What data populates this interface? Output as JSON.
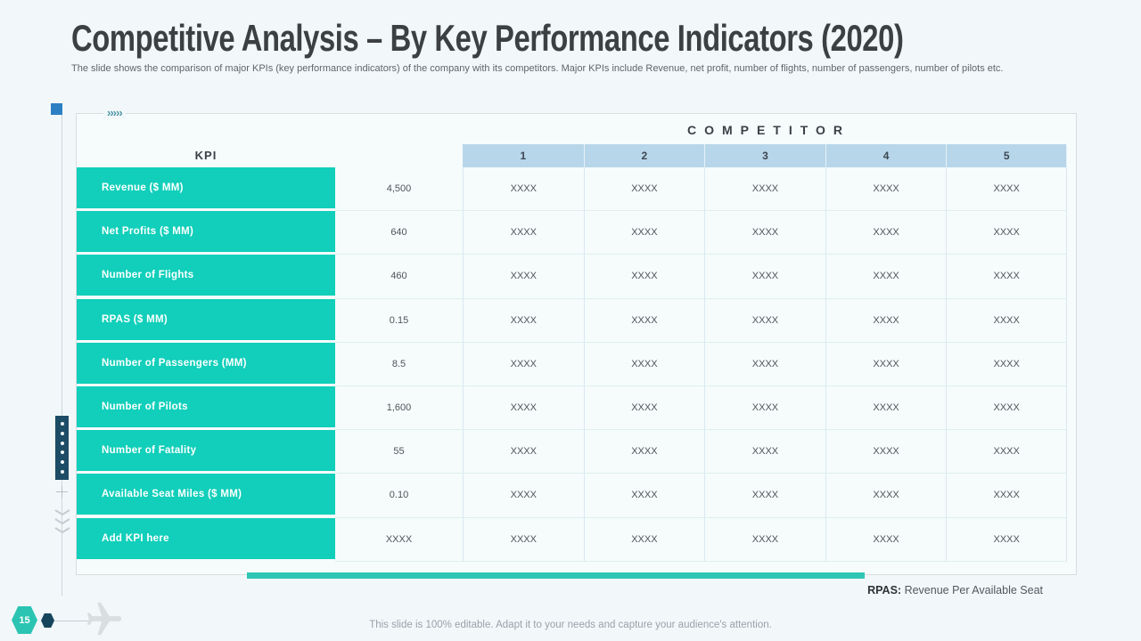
{
  "slide": {
    "title": "Competitive Analysis – By Key Performance Indicators (2020)",
    "subtitle": "The slide shows the comparison of major KPIs (key performance indicators) of the company with its competitors. Major KPIs include Revenue, net profit, number of flights, number of passengers, number of pilots etc.",
    "footer": "This slide is 100% editable. Adapt it to your needs and capture your audience's attention.",
    "page_number": "15"
  },
  "table": {
    "kpi_header": "KPI",
    "competitor_header": "COMPETITOR",
    "competitor_columns": [
      "1",
      "2",
      "3",
      "4",
      "5"
    ],
    "rows": [
      {
        "kpi": "Revenue ($ MM)",
        "company_value": "4,500",
        "competitor_values": [
          "XXXX",
          "XXXX",
          "XXXX",
          "XXXX",
          "XXXX"
        ]
      },
      {
        "kpi": "Net Profits ($ MM)",
        "company_value": "640",
        "competitor_values": [
          "XXXX",
          "XXXX",
          "XXXX",
          "XXXX",
          "XXXX"
        ]
      },
      {
        "kpi": "Number of Flights",
        "company_value": "460",
        "competitor_values": [
          "XXXX",
          "XXXX",
          "XXXX",
          "XXXX",
          "XXXX"
        ]
      },
      {
        "kpi": "RPAS ($ MM)",
        "company_value": "0.15",
        "competitor_values": [
          "XXXX",
          "XXXX",
          "XXXX",
          "XXXX",
          "XXXX"
        ]
      },
      {
        "kpi": "Number of Passengers (MM)",
        "company_value": "8.5",
        "competitor_values": [
          "XXXX",
          "XXXX",
          "XXXX",
          "XXXX",
          "XXXX"
        ]
      },
      {
        "kpi": "Number of Pilots",
        "company_value": "1,600",
        "competitor_values": [
          "XXXX",
          "XXXX",
          "XXXX",
          "XXXX",
          "XXXX"
        ]
      },
      {
        "kpi": "Number of Fatality",
        "company_value": "55",
        "competitor_values": [
          "XXXX",
          "XXXX",
          "XXXX",
          "XXXX",
          "XXXX"
        ]
      },
      {
        "kpi": "Available Seat Miles ($ MM)",
        "company_value": "0.10",
        "competitor_values": [
          "XXXX",
          "XXXX",
          "XXXX",
          "XXXX",
          "XXXX"
        ]
      },
      {
        "kpi": "Add KPI here",
        "company_value": "XXXX",
        "competitor_values": [
          "XXXX",
          "XXXX",
          "XXXX",
          "XXXX",
          "XXXX"
        ]
      }
    ]
  },
  "note": {
    "label": "RPAS:",
    "text": "Revenue Per Available Seat"
  },
  "decorations": {
    "top_chevrons": "›››››"
  },
  "colors": {
    "teal": "#11cfba",
    "teal_bar": "#2ec6b4",
    "header_band": "#b8d6e9",
    "navy": "#1d4c66",
    "accent_blue": "#2d7fc3"
  }
}
